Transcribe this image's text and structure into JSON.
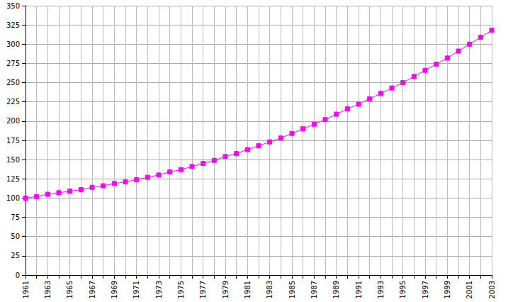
{
  "chart_data": {
    "type": "line",
    "categories": [
      "1961",
      null,
      "1963",
      null,
      "1965",
      null,
      "1967",
      null,
      "1969",
      null,
      "1971",
      null,
      "1973",
      null,
      "1975",
      null,
      "1977",
      null,
      "1979",
      null,
      "1981",
      null,
      "1983",
      null,
      "1985",
      null,
      "1987",
      null,
      "1989",
      null,
      "1991",
      null,
      "1993",
      null,
      "1995",
      null,
      "1997",
      null,
      "1999",
      null,
      "2001",
      null,
      "2003"
    ],
    "values": [
      100,
      102,
      105,
      107,
      109,
      111,
      114,
      116,
      119,
      121,
      124,
      127,
      130,
      134,
      137,
      141,
      145,
      149,
      154,
      158,
      163,
      168,
      173,
      178,
      184,
      190,
      196,
      202,
      209,
      216,
      222,
      229,
      236,
      243,
      250,
      258,
      266,
      274,
      282,
      291,
      300,
      309,
      318
    ],
    "color": "#ff00ff",
    "marker": "square",
    "ylim": [
      0,
      350
    ],
    "yticks": [
      0,
      25,
      50,
      75,
      100,
      125,
      150,
      175,
      200,
      225,
      250,
      275,
      300,
      325,
      350
    ],
    "grid": true
  }
}
